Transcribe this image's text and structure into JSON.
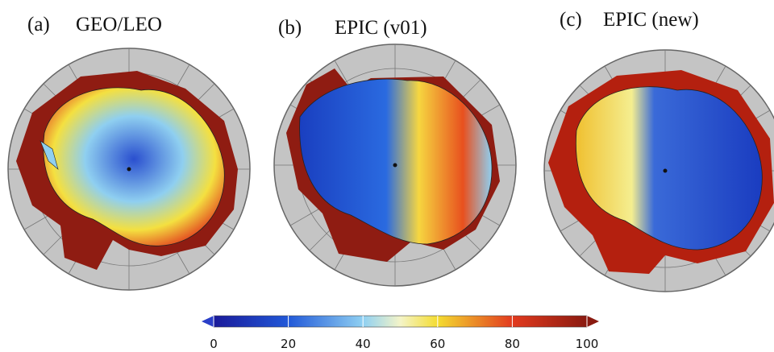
{
  "panels": [
    {
      "label": "(a)",
      "title": "GEO/LEO"
    },
    {
      "label": "(b)",
      "title": "EPIC (v01)"
    },
    {
      "label": "(c)",
      "title": "EPIC (new)"
    }
  ],
  "colorbar": {
    "lim": [
      0,
      100
    ],
    "ticks": [
      0,
      20,
      40,
      60,
      80,
      100
    ]
  }
}
